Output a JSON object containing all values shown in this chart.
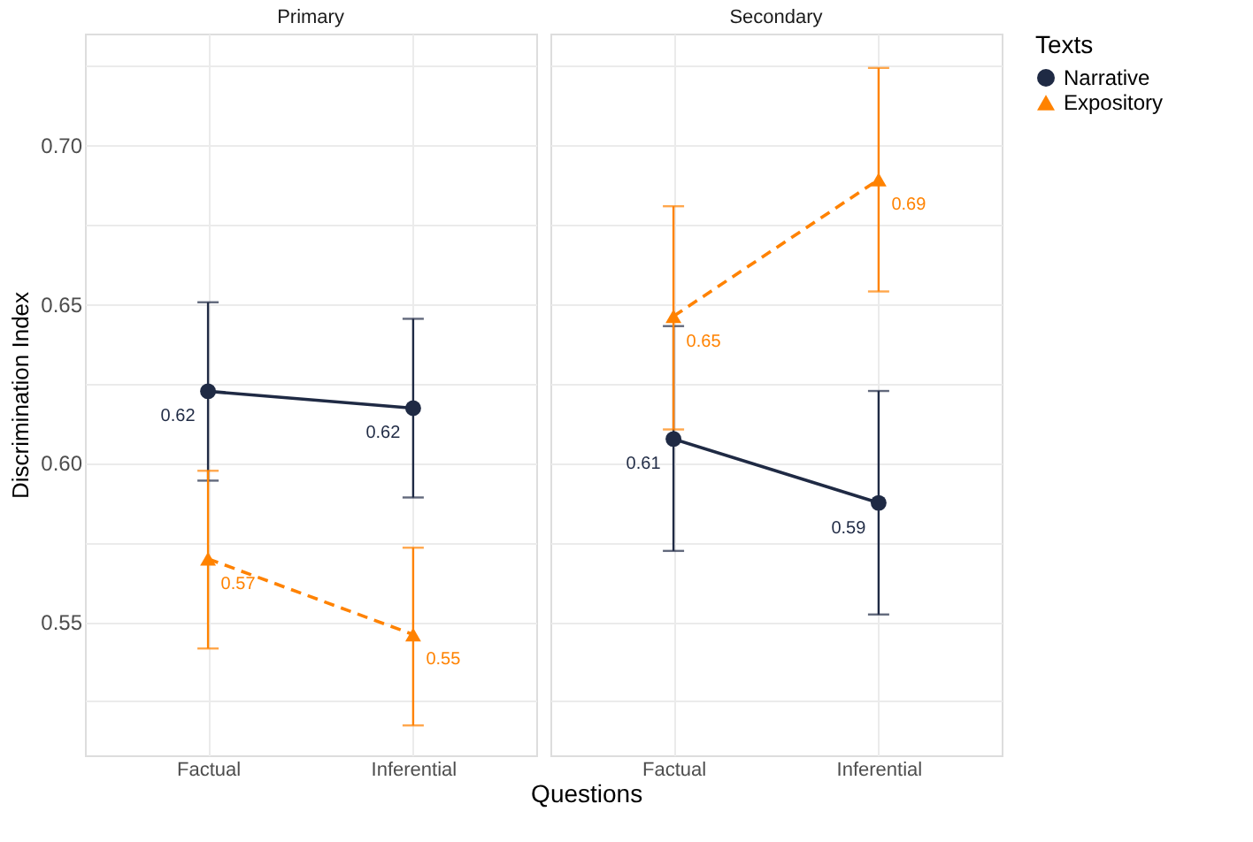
{
  "chart_data": [
    {
      "type": "line",
      "title": "Primary",
      "ylabel": "Discrimination Index",
      "xlabel": "Questions",
      "categories": [
        "Factual",
        "Inferential"
      ],
      "series": [
        {
          "name": "Narrative",
          "color": "#1f2a44",
          "marker": "circle",
          "line_style": "solid",
          "values": [
            0.6225,
            0.6172
          ],
          "errors": [
            [
              0.5944,
              0.6505
            ],
            [
              0.5891,
              0.6453
            ]
          ],
          "value_labels": [
            "0.62",
            "0.62"
          ]
        },
        {
          "name": "Expository",
          "color": "#ff8200",
          "marker": "triangle",
          "line_style": "dashed",
          "values": [
            0.5698,
            0.546
          ],
          "errors": [
            [
              0.5416,
              0.5975
            ],
            [
              0.5174,
              0.5733
            ]
          ],
          "value_labels": [
            "0.57",
            "0.55"
          ]
        }
      ],
      "ylim": [
        0.508,
        0.735
      ],
      "yticks": [
        {
          "value": 0.525,
          "label": null
        },
        {
          "value": 0.55,
          "label": "0.55"
        },
        {
          "value": 0.575,
          "label": null
        },
        {
          "value": 0.6,
          "label": "0.60"
        },
        {
          "value": 0.625,
          "label": null
        },
        {
          "value": 0.65,
          "label": "0.65"
        },
        {
          "value": 0.675,
          "label": null
        },
        {
          "value": 0.7,
          "label": "0.70"
        },
        {
          "value": 0.725,
          "label": null
        }
      ],
      "grid": true,
      "legend": "right"
    },
    {
      "type": "line",
      "title": "Secondary",
      "categories": [
        "Factual",
        "Inferential"
      ],
      "series": [
        {
          "name": "Narrative",
          "color": "#1f2a44",
          "marker": "circle",
          "line_style": "solid",
          "values": [
            0.6075,
            0.5874
          ],
          "errors": [
            [
              0.5723,
              0.643
            ],
            [
              0.5523,
              0.6226
            ]
          ],
          "value_labels": [
            "0.61",
            "0.59"
          ]
        },
        {
          "name": "Expository",
          "color": "#ff8200",
          "marker": "triangle",
          "line_style": "dashed",
          "values": [
            0.6461,
            0.6891
          ],
          "errors": [
            [
              0.6105,
              0.6807
            ],
            [
              0.6539,
              0.7242
            ]
          ],
          "value_labels": [
            "0.65",
            "0.69"
          ]
        }
      ],
      "ylim": [
        0.508,
        0.735
      ],
      "yticks": [
        {
          "value": 0.525,
          "label": null
        },
        {
          "value": 0.55,
          "label": "0.55"
        },
        {
          "value": 0.575,
          "label": null
        },
        {
          "value": 0.6,
          "label": "0.60"
        },
        {
          "value": 0.625,
          "label": null
        },
        {
          "value": 0.65,
          "label": "0.65"
        },
        {
          "value": 0.675,
          "label": null
        },
        {
          "value": 0.7,
          "label": "0.70"
        },
        {
          "value": 0.725,
          "label": null
        }
      ],
      "grid": true,
      "legend": "right",
      "legend_title": "Texts",
      "tick_labels": "x"
    }
  ]
}
